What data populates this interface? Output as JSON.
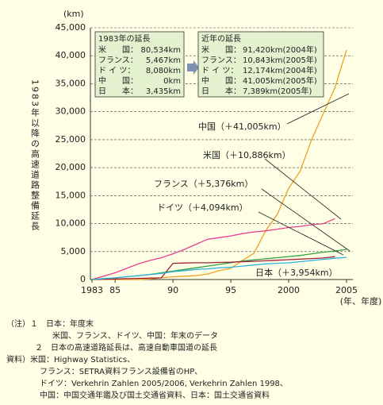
{
  "chart_data": {
    "type": "line",
    "unit_label": "(km)",
    "x_unit_label": "(年、年度)",
    "y_axis_title": "1983年以降の高速道路整備延長",
    "x": [
      1983,
      1984,
      1985,
      1986,
      1987,
      1988,
      1989,
      1990,
      1991,
      1992,
      1993,
      1994,
      1995,
      1996,
      1997,
      1998,
      1999,
      2000,
      2001,
      2002,
      2003,
      2004,
      2005
    ],
    "series": [
      {
        "name": "中国（＋41,005km）",
        "color": "#f0a020",
        "values": [
          0,
          0,
          0,
          0,
          0,
          100,
          300,
          500,
          600,
          700,
          1000,
          1600,
          2000,
          3400,
          4700,
          8700,
          11600,
          16300,
          19400,
          25100,
          29700,
          34300,
          41005
        ]
      },
      {
        "name": "米国（＋10,886km）",
        "color": "#e8408c",
        "values": [
          0,
          600,
          1200,
          2000,
          2800,
          3400,
          3900,
          4600,
          5400,
          6300,
          7200,
          7500,
          7800,
          8200,
          8500,
          8700,
          9000,
          9300,
          9500,
          9800,
          10000,
          10886,
          null
        ]
      },
      {
        "name": "フランス（＋5,376km）",
        "color": "#30a040",
        "values": [
          0,
          150,
          300,
          500,
          700,
          900,
          1200,
          1500,
          1800,
          2100,
          2400,
          2700,
          3000,
          3300,
          3500,
          3700,
          3900,
          4100,
          4300,
          4600,
          4900,
          5100,
          5376
        ]
      },
      {
        "name": "ドイツ（＋4,094km）",
        "color": "#a0203c",
        "values": [
          0,
          50,
          100,
          150,
          200,
          250,
          300,
          2900,
          2950,
          3000,
          3000,
          3050,
          3100,
          3200,
          3250,
          3350,
          3450,
          3550,
          3650,
          3750,
          3850,
          4094,
          null
        ]
      },
      {
        "name": "日本（＋3,954km）",
        "color": "#30b0e0",
        "values": [
          0,
          150,
          300,
          500,
          700,
          900,
          1100,
          1400,
          1600,
          1800,
          1900,
          2100,
          2200,
          2400,
          2600,
          2800,
          2900,
          3000,
          3200,
          3400,
          3600,
          3800,
          3954
        ]
      }
    ],
    "xlim": [
      1983,
      2005
    ],
    "xticks": [
      1983,
      {
        "value": 1985,
        "label": "85"
      },
      {
        "value": 1990,
        "label": "90"
      },
      {
        "value": 1995,
        "label": "95"
      },
      2000,
      2005
    ],
    "ylim": [
      0,
      45000
    ],
    "yticks": [
      0,
      {
        "value": 5000,
        "label": "5,000"
      },
      {
        "value": 10000,
        "label": "10,000"
      },
      {
        "value": 15000,
        "label": "15,000"
      },
      {
        "value": 20000,
        "label": "20,000"
      },
      {
        "value": 25000,
        "label": "25,000"
      },
      {
        "value": 30000,
        "label": "30,000"
      },
      {
        "value": 35000,
        "label": "35,000"
      },
      {
        "value": 40000,
        "label": "40,000"
      },
      {
        "value": 45000,
        "label": "45,000"
      }
    ],
    "grid": true,
    "boxes": [
      {
        "title": "1983年の延長",
        "rows": [
          [
            "米　　国：",
            "80,534km"
          ],
          [
            "フランス：",
            "5,467km"
          ],
          [
            "ド イ ツ：",
            "8,080km"
          ],
          [
            "中　　国：",
            "0km"
          ],
          [
            "日　　本：",
            "3,435km"
          ]
        ]
      },
      {
        "title": "近年の延長",
        "rows": [
          [
            "米　　国：",
            "91,420km(2004年)"
          ],
          [
            "フランス：",
            "10,843km(2005年)"
          ],
          [
            "ド イ ツ：",
            "12,174km(2004年)"
          ],
          [
            "中　　国：",
            "41,005km(2005年)"
          ],
          [
            "日　　本：",
            "7,389km(2005年)"
          ]
        ]
      }
    ]
  },
  "notes": [
    "（注）１　日本：年度末",
    "米国、フランス、ドイツ、中国：年末のデータ",
    "２　日本の高速道路延長は、高速自動車国道の延長",
    "資料）米国：Highway Statistics、",
    "フランス：SETRA資料フランス設備省のHP、",
    "ドイツ：Verkehrin Zahlen 2005/2006, Verkehrin Zahlen 1998、",
    "中国：中国交通年鑑及び国土交通省資料、日本：国土交通省資料"
  ]
}
